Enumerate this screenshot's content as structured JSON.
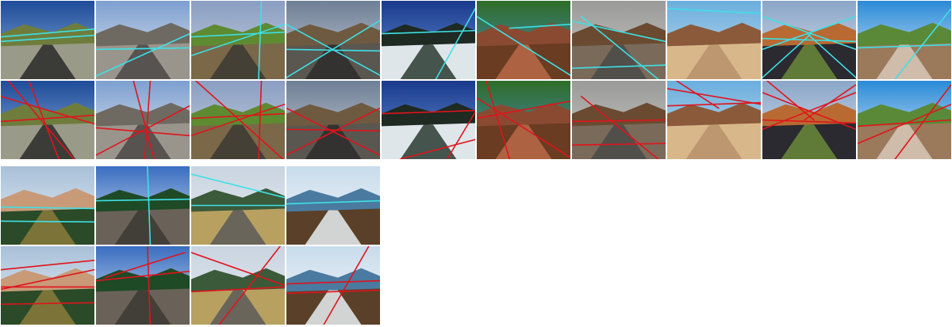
{
  "colors": {
    "predicted_line": "#3ee0e6",
    "groundtruth_line": "#e0141c"
  },
  "panels": [
    {
      "scene": "mountain-road-valley",
      "palette": [
        "#1f4c98",
        "#8cb2e0",
        "#6e7d3c",
        "#9a9a88",
        "#2a2a2a"
      ],
      "pred_lines": [
        [
          0,
          0.46,
          1,
          0.36
        ],
        [
          0,
          0.52,
          1,
          0.44
        ]
      ],
      "gt_lines": [
        [
          0,
          0.2,
          1,
          0.55
        ],
        [
          0.08,
          0,
          0.78,
          1
        ],
        [
          0,
          0.52,
          1,
          0.44
        ],
        [
          0.3,
          0,
          0.62,
          1
        ]
      ]
    },
    {
      "scene": "desert-road-cliffs",
      "palette": [
        "#7da0d0",
        "#e4e8ee",
        "#6e6a62",
        "#9a958c",
        "#4a4846"
      ],
      "pred_lines": [
        [
          0,
          0.62,
          1,
          0.6
        ],
        [
          0,
          0.96,
          1,
          0.42
        ]
      ],
      "gt_lines": [
        [
          0,
          0.95,
          1,
          0.32
        ],
        [
          0.4,
          0,
          0.62,
          1
        ],
        [
          0.58,
          0,
          0.52,
          1
        ],
        [
          0,
          0.6,
          1,
          0.7
        ]
      ]
    },
    {
      "scene": "green-field-road",
      "palette": [
        "#8a9ec2",
        "#c8d2e0",
        "#5e8a32",
        "#7a6848",
        "#3c3a34"
      ],
      "pred_lines": [
        [
          0.75,
          0,
          0.72,
          1
        ],
        [
          0,
          0.46,
          1,
          0.4
        ],
        [
          0,
          0.7,
          1,
          0.3
        ]
      ],
      "gt_lines": [
        [
          0.75,
          0,
          0.72,
          1
        ],
        [
          0,
          0.48,
          1,
          0.42
        ],
        [
          0,
          0.7,
          1,
          0.3
        ],
        [
          0.05,
          0,
          0.98,
          1
        ]
      ]
    },
    {
      "scene": "cloudy-flat-road",
      "palette": [
        "#6f7f96",
        "#c8ced8",
        "#6e5a40",
        "#5a5650",
        "#2e2c2a"
      ],
      "pred_lines": [
        [
          0,
          0.3,
          1,
          0.95
        ],
        [
          0,
          0.98,
          1,
          0.25
        ],
        [
          0,
          0.62,
          1,
          0.64
        ]
      ],
      "gt_lines": [
        [
          0,
          0.35,
          1,
          0.95
        ],
        [
          0,
          0.95,
          1,
          0.35
        ],
        [
          0,
          0.62,
          1,
          0.64
        ]
      ]
    },
    {
      "scene": "snowy-forest-slope",
      "palette": [
        "#1a3a8c",
        "#6a96d8",
        "#1e2a22",
        "#dfe6ea",
        "#2a3a30"
      ],
      "pred_lines": [
        [
          0,
          0.42,
          1,
          0.38
        ],
        [
          0.58,
          1,
          1,
          0.1
        ]
      ],
      "gt_lines": [
        [
          0,
          0.42,
          1,
          0.38
        ],
        [
          0.7,
          1,
          1,
          0.4
        ],
        [
          0.2,
          1,
          1,
          0.75
        ]
      ]
    },
    {
      "scene": "lake-tree-bench",
      "palette": [
        "#2f6d28",
        "#4a8cc8",
        "#8a4a32",
        "#6a3c22",
        "#b86a48"
      ],
      "pred_lines": [
        [
          0,
          0.2,
          1,
          0.95
        ],
        [
          0.35,
          0.35,
          1,
          0.3
        ]
      ],
      "gt_lines": [
        [
          0,
          0.22,
          1,
          0.98
        ],
        [
          0,
          0.48,
          1,
          0.26
        ],
        [
          0.1,
          0,
          0.35,
          1
        ]
      ]
    },
    {
      "scene": "foggy-hillside",
      "palette": [
        "#9a9a98",
        "#c8c8c4",
        "#6a4a30",
        "#7a6a5a",
        "#4a4a48"
      ],
      "pred_lines": [
        [
          0,
          0.26,
          1,
          0.52
        ],
        [
          0,
          0.86,
          1,
          0.82
        ],
        [
          0.1,
          0.2,
          0.92,
          1
        ]
      ],
      "gt_lines": [
        [
          0,
          0.52,
          1,
          0.5
        ],
        [
          0.1,
          0.2,
          0.92,
          1
        ],
        [
          0,
          0.82,
          1,
          0.8
        ]
      ]
    },
    {
      "scene": "desert-sand-dunes",
      "palette": [
        "#6aaede",
        "#c8dcea",
        "#8a5a3a",
        "#d8b88a",
        "#b8906a"
      ],
      "pred_lines": [
        [
          0,
          0.1,
          1,
          0.16
        ]
      ],
      "gt_lines": [
        [
          0,
          0.1,
          1,
          0.3
        ],
        [
          0,
          0.32,
          1,
          0.28
        ],
        [
          0.1,
          0,
          0.55,
          0.35
        ]
      ]
    },
    {
      "scene": "road-orange-hills",
      "palette": [
        "#8aa6c8",
        "#d8e0ea",
        "#b86a32",
        "#2a2a30",
        "#6a8a3a"
      ],
      "pred_lines": [
        [
          0,
          0.2,
          1,
          0.62
        ],
        [
          0,
          0.62,
          1,
          0.2
        ],
        [
          0,
          0.98,
          0.52,
          0.42
        ],
        [
          1,
          0.98,
          0.48,
          0.42
        ],
        [
          0,
          0.48,
          1,
          0.52
        ]
      ],
      "gt_lines": [
        [
          0,
          0.15,
          1,
          0.62
        ],
        [
          0,
          0.62,
          1,
          0.15
        ],
        [
          0,
          0.5,
          1,
          0.54
        ],
        [
          0.05,
          0,
          0.55,
          0.5
        ],
        [
          1,
          0.05,
          0.45,
          0.5
        ]
      ]
    },
    {
      "scene": "coastal-cliff-sky",
      "palette": [
        "#2a8ad8",
        "#e0eef8",
        "#5a8a38",
        "#9a7a5a",
        "#d8c8b8"
      ],
      "pred_lines": [
        [
          0,
          0.6,
          1,
          0.56
        ],
        [
          0.4,
          1,
          1,
          0.1
        ]
      ],
      "gt_lines": [
        [
          0,
          0.58,
          1,
          0.5
        ],
        [
          0.4,
          1,
          1,
          0.05
        ],
        [
          0,
          0.8,
          1,
          0.3
        ]
      ]
    },
    {
      "scene": "half-dome-meadow",
      "palette": [
        "#a8c0d8",
        "#e8eef4",
        "#c89a78",
        "#2a4a28",
        "#8a7a3a"
      ],
      "pred_lines": [
        [
          0,
          0.52,
          1,
          0.54
        ],
        [
          0,
          0.7,
          1,
          0.71
        ]
      ],
      "gt_lines": [
        [
          0,
          0.3,
          1,
          0.18
        ],
        [
          0,
          0.52,
          1,
          0.52
        ],
        [
          0,
          0.74,
          1,
          0.72
        ],
        [
          0,
          0.55,
          1,
          0.3
        ]
      ]
    },
    {
      "scene": "granite-wall-forest",
      "palette": [
        "#3a6ec0",
        "#d8e6f4",
        "#1e4a26",
        "#6a6258",
        "#3a3a32"
      ],
      "pred_lines": [
        [
          0.55,
          0,
          0.58,
          1
        ],
        [
          0,
          0.44,
          1,
          0.42
        ]
      ],
      "gt_lines": [
        [
          0.55,
          0,
          0.58,
          1
        ],
        [
          0,
          0.44,
          1,
          0.32
        ],
        [
          0.1,
          0.4,
          0.95,
          0.08
        ]
      ]
    },
    {
      "scene": "valley-meadow-person",
      "palette": [
        "#c8d4e0",
        "#e8ecf0",
        "#3a5a3a",
        "#b8a060",
        "#5a5a5a"
      ],
      "pred_lines": [
        [
          0,
          0.1,
          1,
          0.4
        ],
        [
          0,
          0.5,
          1,
          0.5
        ]
      ],
      "gt_lines": [
        [
          0,
          0.08,
          1,
          0.5
        ],
        [
          0,
          0.58,
          1,
          0.52
        ],
        [
          0.95,
          0,
          0.3,
          1
        ]
      ]
    },
    {
      "scene": "lighthouse-coast",
      "palette": [
        "#c8dcec",
        "#f4f6f8",
        "#4a7aa0",
        "#5a4028",
        "#e8eef2"
      ],
      "pred_lines": [
        [
          0,
          0.48,
          1,
          0.44
        ]
      ],
      "gt_lines": [
        [
          0,
          0.48,
          1,
          0.44
        ],
        [
          0.88,
          0,
          0.4,
          1
        ],
        [
          0,
          0.6,
          1,
          0.56
        ]
      ]
    }
  ]
}
